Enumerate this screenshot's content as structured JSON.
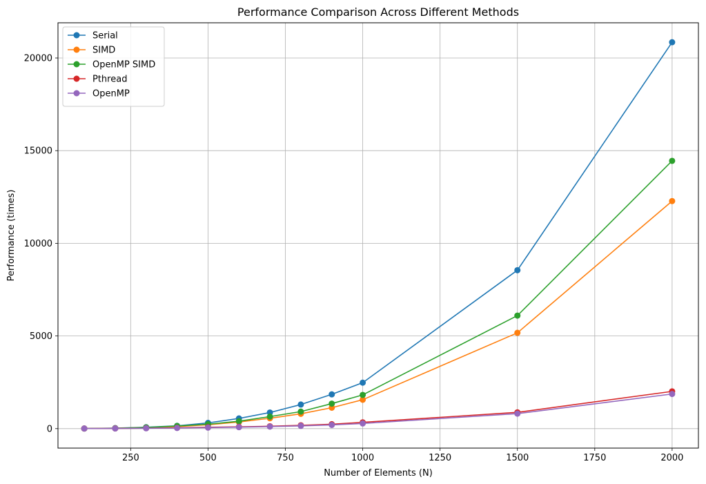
{
  "chart_data": {
    "type": "line",
    "title": "Performance Comparison Across Different Methods",
    "xlabel": "Number of Elements (N)",
    "ylabel": "Performance (times)",
    "xlim": [
      15,
      2085
    ],
    "ylim": [
      -1050,
      21900
    ],
    "xticks": [
      250,
      500,
      750,
      1000,
      1250,
      1500,
      1750,
      2000
    ],
    "yticks": [
      0,
      5000,
      10000,
      15000,
      20000
    ],
    "grid": true,
    "legend_position": "top-left",
    "x": [
      100,
      200,
      300,
      400,
      500,
      600,
      700,
      800,
      900,
      1000,
      1500,
      2000
    ],
    "series": [
      {
        "name": "Serial",
        "color": "#1f77b4",
        "values": [
          5,
          30,
          75,
          150,
          310,
          550,
          870,
          1300,
          1850,
          2480,
          8550,
          20850
        ]
      },
      {
        "name": "SIMD",
        "color": "#ff7f0e",
        "values": [
          5,
          20,
          60,
          110,
          210,
          360,
          560,
          800,
          1130,
          1560,
          5170,
          12280
        ]
      },
      {
        "name": "OpenMP SIMD",
        "color": "#2ca02c",
        "values": [
          5,
          20,
          65,
          140,
          240,
          400,
          650,
          920,
          1350,
          1820,
          6100,
          14450
        ]
      },
      {
        "name": "Pthread",
        "color": "#d62728",
        "values": [
          5,
          10,
          25,
          45,
          75,
          100,
          130,
          180,
          240,
          340,
          880,
          2010
        ]
      },
      {
        "name": "OpenMP",
        "color": "#9467bd",
        "values": [
          5,
          8,
          20,
          35,
          55,
          80,
          110,
          150,
          200,
          280,
          810,
          1870
        ]
      }
    ]
  }
}
